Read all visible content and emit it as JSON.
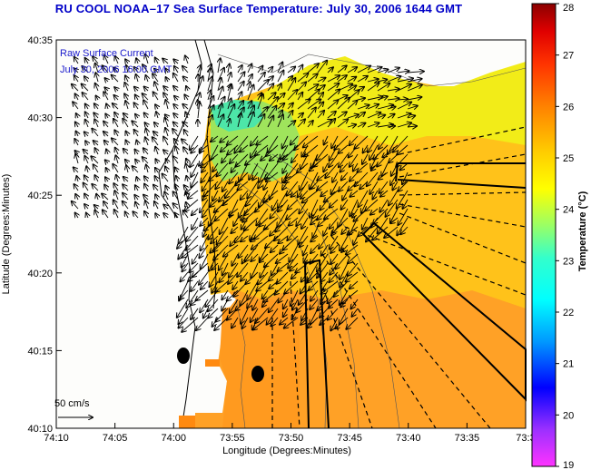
{
  "title": "RU COOL  NOAA–17  Sea Surface Temperature:  July 30, 2006 1644 GMT",
  "legend_lines": [
    "Raw Surface Current",
    "July 30, 2006 16:00 GMT"
  ],
  "scale_label": "50 cm/s",
  "xlabel": "Longitude (Degrees:Minutes)",
  "ylabel": "Latitude (Degrees:Minutes)",
  "x_ticks": [
    "74:10",
    "74:05",
    "74:00",
    "73:55",
    "73:50",
    "73:45",
    "73:40",
    "73:35",
    "73:3"
  ],
  "y_ticks": [
    "40:35",
    "40:30",
    "40:25",
    "40:20",
    "40:15",
    "40:10"
  ],
  "colorbar": {
    "label": "Temperature (°C)",
    "ticks": [
      "28",
      "27",
      "26",
      "25",
      "24",
      "23",
      "22",
      "21",
      "20",
      "19"
    ],
    "min": 19,
    "max": 28,
    "colors": [
      "#ff33ff",
      "#9b30ff",
      "#0000ff",
      "#0099ff",
      "#00ffff",
      "#33ffcc",
      "#99ff66",
      "#ffff00",
      "#ffcc00",
      "#ff8000",
      "#ff3300",
      "#e00000",
      "#8b0000"
    ]
  },
  "colors": {
    "land": "#fdfdfb",
    "title": "#0000c8",
    "note": "#1a1acc"
  }
}
